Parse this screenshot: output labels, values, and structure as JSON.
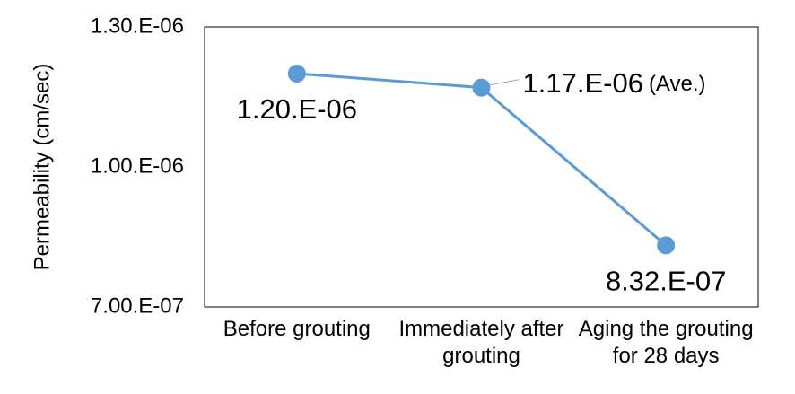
{
  "chart_data": {
    "type": "line",
    "y_label": "Permeability (cm/sec)",
    "categories": [
      "Before grouting",
      "Immediately after grouting",
      "Aging the grouting for 28 days"
    ],
    "series": [
      {
        "name": "Permeability",
        "color": "#5b9bd5",
        "values": [
          1.2e-06,
          1.17e-06,
          8.32e-07
        ],
        "value_labels": [
          "1.20.E-06",
          "1.17.E-06",
          "8.32.E-07"
        ]
      }
    ],
    "annotation": "(Ave.)",
    "ylim": [
      7e-07,
      1.3e-06
    ],
    "yticks": [
      {
        "value": 7e-07,
        "label": "7.00.E-07"
      },
      {
        "value": 1e-06,
        "label": "1.00.E-06"
      },
      {
        "value": 1.3e-06,
        "label": "1.30.E-06"
      }
    ],
    "grid": false
  }
}
